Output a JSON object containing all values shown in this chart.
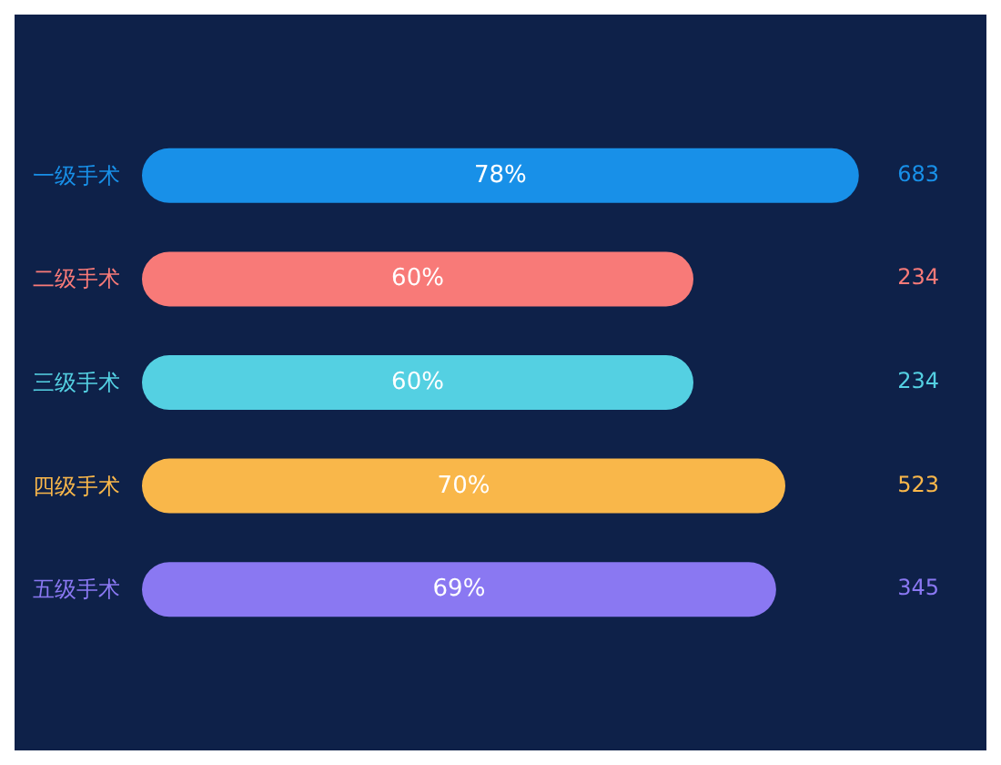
{
  "chart_data": {
    "type": "bar",
    "orientation": "horizontal",
    "categories": [
      "一级手术",
      "二级手术",
      "三级手术",
      "四级手术",
      "五级手术"
    ],
    "values": [
      78,
      60,
      60,
      70,
      69
    ],
    "value_labels": [
      "78%",
      "60%",
      "60%",
      "70%",
      "69%"
    ],
    "colors": [
      "#1890e8",
      "#f87a78",
      "#54d0e2",
      "#f9b74a",
      "#8a78f2"
    ],
    "annotations": [
      "683",
      "234",
      "234",
      "523",
      "345"
    ]
  }
}
